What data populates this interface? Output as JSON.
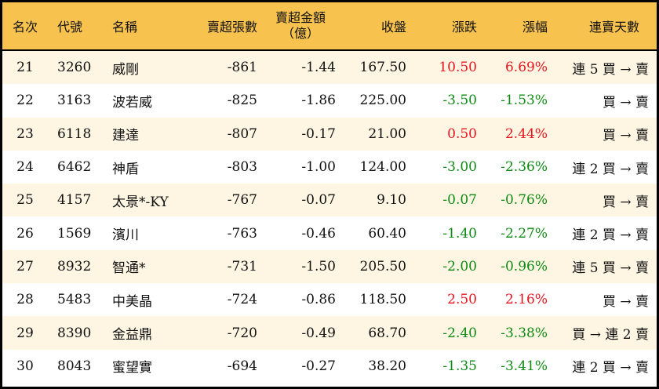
{
  "headers": {
    "rank": "名次",
    "code": "代號",
    "name": "名稱",
    "sell_shares": "賣超張數",
    "sell_amount": "賣超金額",
    "sell_amount_unit": "（億）",
    "close": "收盤",
    "change": "漲跌",
    "pct": "漲幅",
    "streak": "連賣天數"
  },
  "colors": {
    "header": "#F8C24F",
    "row_alt": "#FEF6E3",
    "up": "#E8141E",
    "down": "#0E8A14"
  },
  "rows": [
    {
      "rank": "21",
      "code": "3260",
      "name": "威剛",
      "sell_shares": "-861",
      "sell_amount": "-1.44",
      "close": "167.50",
      "change": "10.50",
      "pct": "6.69%",
      "streak": "連 5 買 → 賣",
      "dir": "up"
    },
    {
      "rank": "22",
      "code": "3163",
      "name": "波若威",
      "sell_shares": "-825",
      "sell_amount": "-1.86",
      "close": "225.00",
      "change": "-3.50",
      "pct": "-1.53%",
      "streak": "買 → 賣",
      "dir": "down"
    },
    {
      "rank": "23",
      "code": "6118",
      "name": "建達",
      "sell_shares": "-807",
      "sell_amount": "-0.17",
      "close": "21.00",
      "change": "0.50",
      "pct": "2.44%",
      "streak": "買 → 賣",
      "dir": "up"
    },
    {
      "rank": "24",
      "code": "6462",
      "name": "神盾",
      "sell_shares": "-803",
      "sell_amount": "-1.00",
      "close": "124.00",
      "change": "-3.00",
      "pct": "-2.36%",
      "streak": "連 2 買 → 賣",
      "dir": "down"
    },
    {
      "rank": "25",
      "code": "4157",
      "name": "太景*-KY",
      "sell_shares": "-767",
      "sell_amount": "-0.07",
      "close": "9.10",
      "change": "-0.07",
      "pct": "-0.76%",
      "streak": "買 → 賣",
      "dir": "down"
    },
    {
      "rank": "26",
      "code": "1569",
      "name": "濱川",
      "sell_shares": "-763",
      "sell_amount": "-0.46",
      "close": "60.40",
      "change": "-1.40",
      "pct": "-2.27%",
      "streak": "連 2 買 → 賣",
      "dir": "down"
    },
    {
      "rank": "27",
      "code": "8932",
      "name": "智通*",
      "sell_shares": "-731",
      "sell_amount": "-1.50",
      "close": "205.50",
      "change": "-2.00",
      "pct": "-0.96%",
      "streak": "連 5 買 → 賣",
      "dir": "down"
    },
    {
      "rank": "28",
      "code": "5483",
      "name": "中美晶",
      "sell_shares": "-724",
      "sell_amount": "-0.86",
      "close": "118.50",
      "change": "2.50",
      "pct": "2.16%",
      "streak": "買 → 賣",
      "dir": "up"
    },
    {
      "rank": "29",
      "code": "8390",
      "name": "金益鼎",
      "sell_shares": "-720",
      "sell_amount": "-0.49",
      "close": "68.70",
      "change": "-2.40",
      "pct": "-3.38%",
      "streak": "買 → 連 2 賣",
      "dir": "down"
    },
    {
      "rank": "30",
      "code": "8043",
      "name": "蜜望實",
      "sell_shares": "-694",
      "sell_amount": "-0.27",
      "close": "38.20",
      "change": "-1.35",
      "pct": "-3.41%",
      "streak": "連 2 買 → 賣",
      "dir": "down"
    }
  ]
}
